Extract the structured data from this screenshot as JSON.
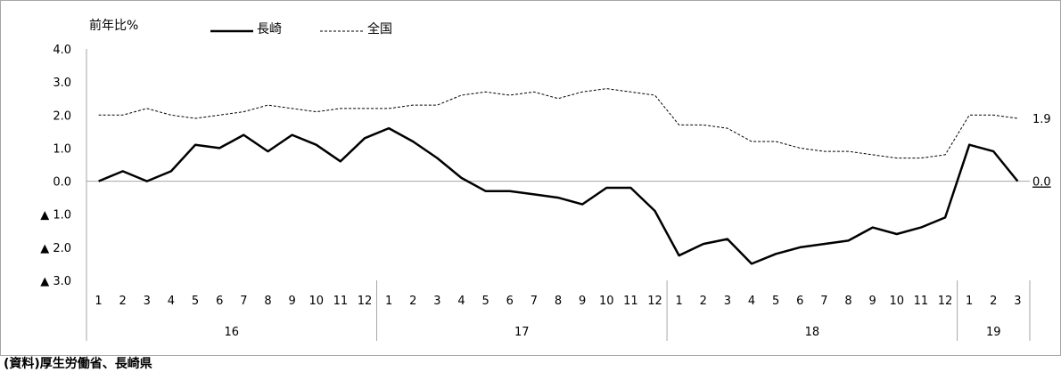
{
  "chart_data": {
    "type": "line",
    "ylabel": "前年比%",
    "ylim": [
      -3.0,
      4.0
    ],
    "y_ticks": [
      {
        "value": 4.0,
        "label": "4.0"
      },
      {
        "value": 3.0,
        "label": "3.0"
      },
      {
        "value": 2.0,
        "label": "2.0"
      },
      {
        "value": 1.0,
        "label": "1.0"
      },
      {
        "value": 0.0,
        "label": "0.0"
      },
      {
        "value": -1.0,
        "label": "▲ 1.0"
      },
      {
        "value": -2.0,
        "label": "▲ 2.0"
      },
      {
        "value": -3.0,
        "label": "▲ 3.0"
      }
    ],
    "months": [
      "1",
      "2",
      "3",
      "4",
      "5",
      "6",
      "7",
      "8",
      "9",
      "10",
      "11",
      "12",
      "1",
      "2",
      "3",
      "4",
      "5",
      "6",
      "7",
      "8",
      "9",
      "10",
      "11",
      "12",
      "1",
      "2",
      "3",
      "4",
      "5",
      "6",
      "7",
      "8",
      "9",
      "10",
      "11",
      "12",
      "1",
      "2",
      "3"
    ],
    "years": [
      {
        "label": "16",
        "months": 12
      },
      {
        "label": "17",
        "months": 12
      },
      {
        "label": "18",
        "months": 12
      },
      {
        "label": "19",
        "months": 3
      }
    ],
    "series": [
      {
        "name": "長崎",
        "style": "solid",
        "values": [
          0.0,
          0.3,
          0.0,
          0.3,
          1.1,
          1.0,
          1.4,
          0.9,
          1.4,
          1.1,
          0.6,
          1.3,
          1.6,
          1.2,
          0.7,
          0.1,
          -0.3,
          -0.3,
          -0.4,
          -0.5,
          -0.7,
          -0.2,
          -0.2,
          -0.9,
          -2.25,
          -1.9,
          -1.75,
          -2.5,
          -2.2,
          -2.0,
          -1.9,
          -1.8,
          -1.4,
          -1.6,
          -1.4,
          -1.1,
          1.1,
          0.9,
          0.0
        ],
        "end_label": "0.0"
      },
      {
        "name": "全国",
        "style": "dashed",
        "values": [
          2.0,
          2.0,
          2.2,
          2.0,
          1.9,
          2.0,
          2.1,
          2.3,
          2.2,
          2.1,
          2.2,
          2.2,
          2.2,
          2.3,
          2.3,
          2.6,
          2.7,
          2.6,
          2.7,
          2.5,
          2.7,
          2.8,
          2.7,
          2.6,
          1.7,
          1.7,
          1.6,
          1.2,
          1.2,
          1.0,
          0.9,
          0.9,
          0.8,
          0.7,
          0.7,
          0.8,
          2.0,
          2.0,
          1.9
        ],
        "end_label": "1.9"
      }
    ],
    "legend_position": "top",
    "source": "(資料)厚生労働省、長崎県"
  }
}
